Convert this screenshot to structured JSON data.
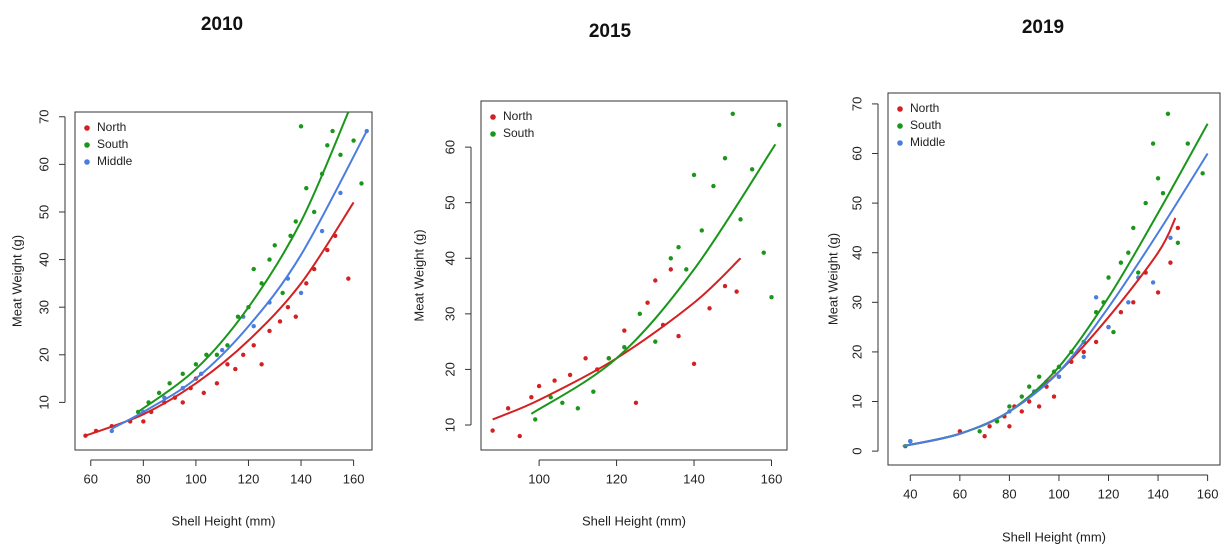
{
  "chart_data": [
    {
      "type": "scatter",
      "title": "2010",
      "x_label": "Shell Height (mm)",
      "y_label": "Meat Weight (g)",
      "xlim": [
        54,
        167
      ],
      "ylim": [
        0,
        71
      ],
      "xticks": [
        60,
        80,
        100,
        120,
        140,
        160
      ],
      "yticks": [
        10,
        20,
        30,
        40,
        50,
        60,
        70
      ],
      "grid": false,
      "legend": "top-left",
      "series": [
        {
          "name": "North",
          "color": "#d42020",
          "x": [
            58,
            62,
            68,
            75,
            80,
            83,
            88,
            92,
            95,
            98,
            100,
            103,
            108,
            112,
            115,
            118,
            122,
            125,
            128,
            132,
            135,
            138,
            142,
            145,
            150,
            153,
            158
          ],
          "values": [
            3,
            4,
            5,
            6,
            6,
            8,
            10,
            11,
            10,
            13,
            15,
            12,
            14,
            18,
            17,
            20,
            22,
            18,
            25,
            27,
            30,
            28,
            35,
            38,
            42,
            45,
            36
          ],
          "curve_x": [
            58,
            80,
            100,
            120,
            140,
            160
          ],
          "curve_values": [
            3,
            7.5,
            14,
            23,
            35,
            52
          ]
        },
        {
          "name": "South",
          "color": "#1a961a",
          "x": [
            78,
            82,
            86,
            90,
            95,
            100,
            104,
            108,
            112,
            116,
            120,
            122,
            125,
            128,
            130,
            133,
            136,
            138,
            140,
            142,
            145,
            148,
            150,
            152,
            155,
            160,
            163
          ],
          "values": [
            8,
            10,
            12,
            14,
            16,
            18,
            20,
            20,
            22,
            28,
            30,
            38,
            35,
            40,
            43,
            33,
            45,
            48,
            68,
            55,
            50,
            58,
            64,
            67,
            62,
            65,
            56
          ],
          "curve_x": [
            78,
            100,
            120,
            140,
            158
          ],
          "curve_values": [
            8,
            17,
            30,
            48,
            71
          ]
        },
        {
          "name": "Middle",
          "color": "#4a7de0",
          "x": [
            68,
            80,
            88,
            95,
            102,
            110,
            118,
            122,
            128,
            135,
            140,
            148,
            155,
            165
          ],
          "values": [
            4,
            8,
            11,
            13,
            16,
            21,
            28,
            26,
            31,
            36,
            33,
            46,
            54,
            67
          ],
          "curve_x": [
            68,
            80,
            100,
            120,
            140,
            165
          ],
          "curve_values": [
            4.5,
            8,
            15,
            26,
            41,
            67
          ]
        }
      ]
    },
    {
      "type": "scatter",
      "title": "2015",
      "x_label": "Shell Height (mm)",
      "y_label": "Meat Weight (g)",
      "xlim": [
        85,
        164
      ],
      "ylim": [
        5.5,
        68.3
      ],
      "xticks": [
        100,
        120,
        140,
        160
      ],
      "yticks": [
        10,
        20,
        30,
        40,
        50,
        60
      ],
      "grid": false,
      "legend": "top-left",
      "series": [
        {
          "name": "North",
          "color": "#d42020",
          "x": [
            88,
            92,
            95,
            98,
            100,
            104,
            108,
            112,
            115,
            118,
            122,
            125,
            128,
            130,
            132,
            134,
            136,
            140,
            144,
            148,
            151
          ],
          "values": [
            9,
            13,
            8,
            15,
            17,
            18,
            19,
            22,
            20,
            22,
            27,
            14,
            32,
            36,
            28,
            38,
            26,
            21,
            31,
            35,
            34
          ],
          "curve_x": [
            88,
            100,
            120,
            140,
            152
          ],
          "curve_values": [
            11,
            14.5,
            22,
            32,
            40
          ]
        },
        {
          "name": "South",
          "color": "#1a961a",
          "x": [
            99,
            103,
            106,
            110,
            114,
            118,
            122,
            126,
            130,
            134,
            136,
            138,
            140,
            142,
            145,
            148,
            150,
            152,
            155,
            158,
            160,
            162
          ],
          "values": [
            11,
            15,
            14,
            13,
            16,
            22,
            24,
            30,
            25,
            40,
            42,
            38,
            55,
            45,
            53,
            58,
            66,
            47,
            56,
            41,
            33,
            64
          ],
          "curve_x": [
            98,
            120,
            140,
            161
          ],
          "curve_values": [
            12,
            22,
            38,
            60.5
          ]
        }
      ]
    },
    {
      "type": "scatter",
      "title": "2019",
      "x_label": "Shell Height (mm)",
      "y_label": "Meat Weight (g)",
      "xlim": [
        31,
        165
      ],
      "ylim": [
        -2.8,
        72.2
      ],
      "xticks": [
        40,
        60,
        80,
        100,
        120,
        140,
        160
      ],
      "yticks": [
        0,
        10,
        20,
        30,
        40,
        50,
        60,
        70
      ],
      "grid": false,
      "legend": "top-left",
      "series": [
        {
          "name": "North",
          "color": "#d42020",
          "x": [
            60,
            70,
            72,
            75,
            78,
            80,
            82,
            85,
            88,
            90,
            92,
            95,
            98,
            100,
            105,
            110,
            115,
            120,
            125,
            130,
            135,
            140,
            145,
            148
          ],
          "values": [
            4,
            3,
            5,
            6,
            7,
            5,
            9,
            8,
            10,
            12,
            9,
            13,
            11,
            15,
            18,
            20,
            22,
            25,
            28,
            30,
            36,
            32,
            38,
            45
          ],
          "curve_x": [
            37,
            60,
            80,
            100,
            120,
            140,
            147
          ],
          "curve_values": [
            1,
            3.5,
            8,
            16,
            27,
            40,
            47
          ]
        },
        {
          "name": "South",
          "color": "#1a961a",
          "x": [
            38,
            40,
            68,
            75,
            80,
            85,
            88,
            90,
            92,
            95,
            98,
            100,
            105,
            110,
            115,
            118,
            120,
            122,
            125,
            128,
            130,
            132,
            135,
            138,
            140,
            142,
            144,
            148,
            152,
            158
          ],
          "values": [
            1,
            2,
            4,
            6,
            9,
            11,
            13,
            12,
            15,
            14,
            16,
            17,
            20,
            22,
            28,
            30,
            35,
            24,
            38,
            40,
            45,
            36,
            50,
            62,
            55,
            52,
            68,
            42,
            62,
            56
          ],
          "curve_x": [
            37,
            60,
            80,
            100,
            120,
            140,
            160
          ],
          "curve_values": [
            1,
            3.5,
            8,
            17,
            31,
            48,
            66
          ]
        },
        {
          "name": "Middle",
          "color": "#4a7de0",
          "x": [
            40,
            80,
            90,
            95,
            100,
            110,
            115,
            120,
            128,
            132,
            138,
            145
          ],
          "values": [
            2,
            8,
            12,
            14,
            15,
            19,
            31,
            25,
            30,
            35,
            34,
            43
          ],
          "curve_x": [
            37,
            60,
            80,
            100,
            120,
            140,
            160
          ],
          "curve_values": [
            1,
            3.5,
            8,
            16,
            29,
            44,
            60
          ]
        }
      ]
    }
  ]
}
